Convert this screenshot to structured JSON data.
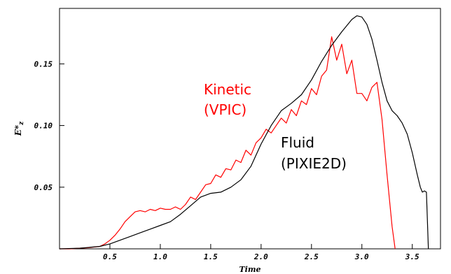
{
  "chart_data": {
    "type": "line",
    "xlabel": "Time",
    "ylabel": "E*",
    "ylabel_sub": "z",
    "xlim": [
      0.0,
      3.78
    ],
    "ylim": [
      0.0,
      0.195
    ],
    "xticks": [
      0.5,
      1.0,
      1.5,
      2.0,
      2.5,
      3.0,
      3.5
    ],
    "xtick_labels": [
      "0.5",
      "1.0",
      "1.5",
      "2.0",
      "2.5",
      "3.0",
      "3.5"
    ],
    "yticks": [
      0.05,
      0.1,
      0.15
    ],
    "ytick_labels": [
      "0.05",
      "0.10",
      "0.15"
    ],
    "grid": false,
    "annotations": [
      {
        "lines": [
          "Kinetic",
          "(VPIC)"
        ],
        "color": "#ff0000"
      },
      {
        "lines": [
          "Fluid",
          "(PIXIE2D)"
        ],
        "color": "#000000"
      }
    ],
    "series": [
      {
        "color": "#ff0000",
        "x": [
          0.0,
          0.1,
          0.2,
          0.3,
          0.4,
          0.45,
          0.5,
          0.55,
          0.6,
          0.65,
          0.7,
          0.75,
          0.8,
          0.85,
          0.9,
          0.95,
          1.0,
          1.05,
          1.1,
          1.15,
          1.2,
          1.25,
          1.3,
          1.35,
          1.4,
          1.45,
          1.5,
          1.55,
          1.6,
          1.65,
          1.7,
          1.75,
          1.8,
          1.85,
          1.9,
          1.95,
          2.0,
          2.05,
          2.1,
          2.15,
          2.2,
          2.25,
          2.3,
          2.35,
          2.4,
          2.45,
          2.5,
          2.55,
          2.6,
          2.65,
          2.7,
          2.75,
          2.8,
          2.85,
          2.9,
          2.95,
          3.0,
          3.05,
          3.1,
          3.15,
          3.2,
          3.25,
          3.3,
          3.33
        ],
        "values": [
          0.0,
          0.0,
          0.0005,
          0.001,
          0.002,
          0.004,
          0.007,
          0.011,
          0.016,
          0.022,
          0.026,
          0.03,
          0.031,
          0.03,
          0.032,
          0.031,
          0.033,
          0.032,
          0.032,
          0.034,
          0.032,
          0.036,
          0.042,
          0.04,
          0.046,
          0.052,
          0.053,
          0.06,
          0.058,
          0.065,
          0.064,
          0.072,
          0.07,
          0.08,
          0.076,
          0.086,
          0.09,
          0.097,
          0.094,
          0.1,
          0.106,
          0.102,
          0.113,
          0.108,
          0.12,
          0.117,
          0.13,
          0.125,
          0.14,
          0.145,
          0.172,
          0.153,
          0.166,
          0.142,
          0.153,
          0.126,
          0.126,
          0.12,
          0.131,
          0.135,
          0.105,
          0.06,
          0.018,
          0.0
        ]
      },
      {
        "color": "#000000",
        "x": [
          0.0,
          0.2,
          0.4,
          0.5,
          0.6,
          0.7,
          0.8,
          0.9,
          1.0,
          1.1,
          1.2,
          1.3,
          1.4,
          1.5,
          1.6,
          1.7,
          1.8,
          1.9,
          2.0,
          2.1,
          2.2,
          2.3,
          2.4,
          2.5,
          2.6,
          2.7,
          2.8,
          2.9,
          2.95,
          3.0,
          3.05,
          3.1,
          3.15,
          3.2,
          3.25,
          3.3,
          3.35,
          3.4,
          3.45,
          3.5,
          3.55,
          3.58,
          3.6,
          3.62,
          3.64,
          3.66
        ],
        "values": [
          0.0,
          0.0005,
          0.002,
          0.004,
          0.007,
          0.01,
          0.013,
          0.016,
          0.019,
          0.022,
          0.028,
          0.035,
          0.042,
          0.045,
          0.046,
          0.05,
          0.056,
          0.067,
          0.085,
          0.1,
          0.112,
          0.118,
          0.125,
          0.137,
          0.152,
          0.165,
          0.176,
          0.186,
          0.189,
          0.188,
          0.182,
          0.17,
          0.153,
          0.135,
          0.12,
          0.112,
          0.108,
          0.102,
          0.093,
          0.078,
          0.06,
          0.05,
          0.046,
          0.047,
          0.046,
          0.0
        ]
      }
    ]
  }
}
